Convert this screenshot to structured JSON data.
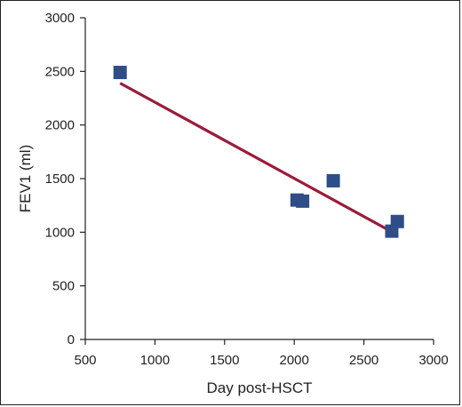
{
  "chart_data": {
    "type": "scatter",
    "xlabel": "Day post-HSCT",
    "ylabel": "FEV1 (ml)",
    "xlim": [
      500,
      3000
    ],
    "ylim": [
      0,
      3000
    ],
    "x_ticks": [
      500,
      1000,
      1500,
      2000,
      2500,
      3000
    ],
    "y_ticks": [
      0,
      500,
      1000,
      1500,
      2000,
      2500,
      3000
    ],
    "grid": false,
    "series": [
      {
        "x": [
          750,
          2020,
          2060,
          2280,
          2700,
          2740
        ],
        "y": [
          2490,
          1300,
          1290,
          1480,
          1010,
          1100
        ]
      }
    ],
    "trendline": {
      "x": [
        750,
        2720
      ],
      "y": [
        2390,
        990
      ]
    },
    "colors": {
      "marker": "#2F4D87",
      "trendline": "#9B1B3A",
      "axis": "#222222"
    }
  }
}
